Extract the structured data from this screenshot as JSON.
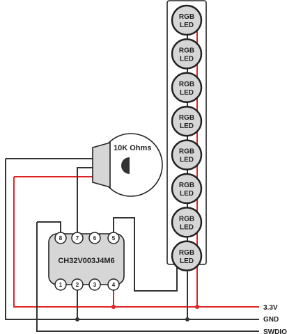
{
  "colors": {
    "power_wire": "#e02424",
    "ground_wire": "#333333",
    "component_fill": "#d6d6d6",
    "background": "#ffffff"
  },
  "led_strip": {
    "led_line1": "RGB",
    "led_line2": "LED",
    "count": 8
  },
  "potentiometer": {
    "label": "10K Ohms"
  },
  "chip": {
    "label": "CH32V003J4M6",
    "top_pins": [
      "8",
      "7",
      "6",
      "5"
    ],
    "bottom_pins": [
      "1",
      "2",
      "3",
      "4"
    ]
  },
  "rails": {
    "power": "3.3V",
    "ground": "GND",
    "data": "SWDIO"
  }
}
